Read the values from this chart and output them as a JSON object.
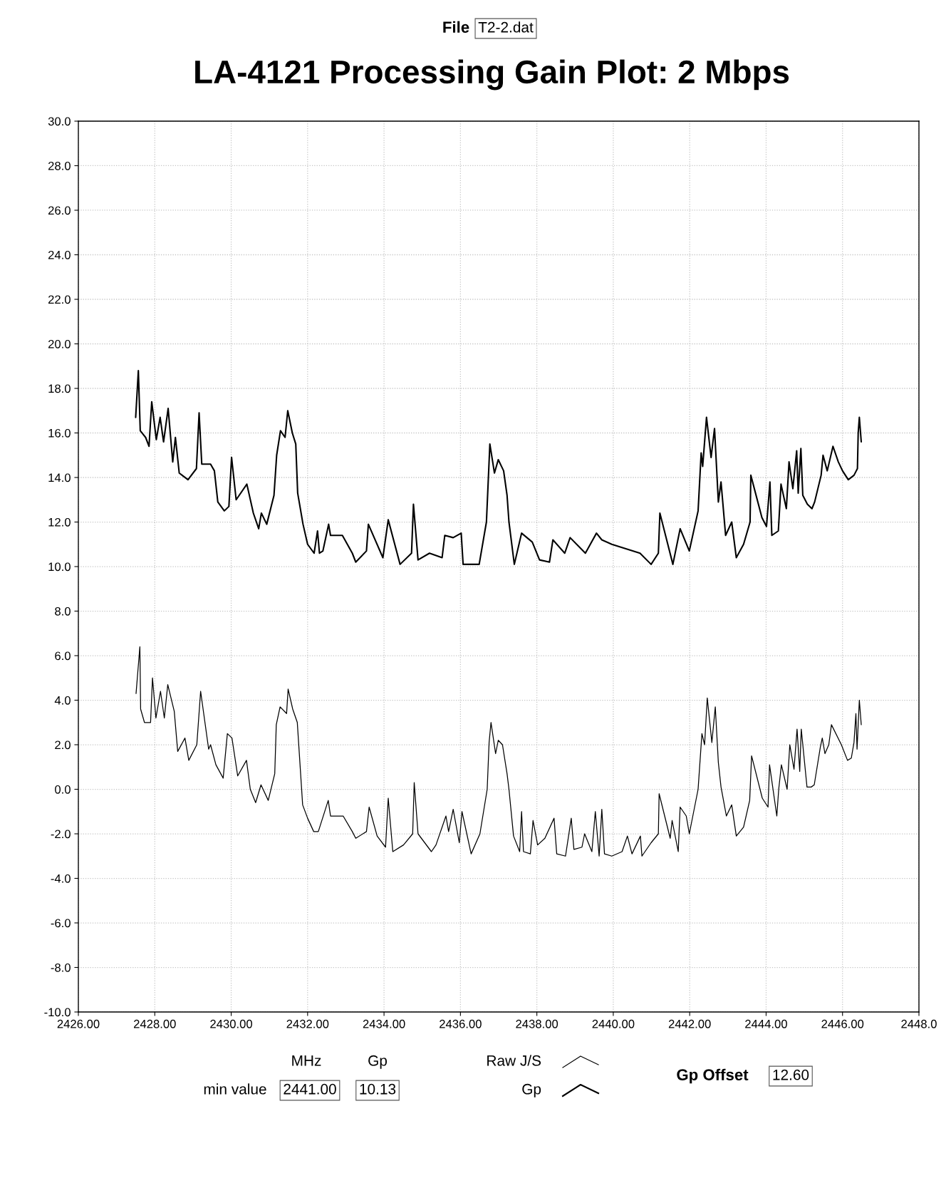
{
  "chart_data": {
    "type": "line",
    "title": "LA-4121 Processing Gain Plot: 2 Mbps",
    "xlim": [
      2426,
      2448
    ],
    "ylim": [
      -10,
      30
    ],
    "xticks": [
      {
        "value": 2426,
        "label": "2426.00"
      },
      {
        "value": 2428,
        "label": "2428.00"
      },
      {
        "value": 2430,
        "label": "2430.00"
      },
      {
        "value": 2432,
        "label": "2432.00"
      },
      {
        "value": 2434,
        "label": "2434.00"
      },
      {
        "value": 2436,
        "label": "2436.00"
      },
      {
        "value": 2438,
        "label": "2438.00"
      },
      {
        "value": 2440,
        "label": "2440.00"
      },
      {
        "value": 2442,
        "label": "2442.00"
      },
      {
        "value": 2444,
        "label": "2444.00"
      },
      {
        "value": 2446,
        "label": "2446.00"
      },
      {
        "value": 2448,
        "label": "2448.0"
      }
    ],
    "yticks": [
      {
        "value": 30,
        "label": "30.0"
      },
      {
        "value": 28,
        "label": "28.0"
      },
      {
        "value": 26,
        "label": "26.0"
      },
      {
        "value": 24,
        "label": "24.0"
      },
      {
        "value": 22,
        "label": "22.0"
      },
      {
        "value": 20,
        "label": "20.0"
      },
      {
        "value": 18,
        "label": "18.0"
      },
      {
        "value": 16,
        "label": "16.0"
      },
      {
        "value": 14,
        "label": "14.0"
      },
      {
        "value": 12,
        "label": "12.0"
      },
      {
        "value": 10,
        "label": "10.0"
      },
      {
        "value": 8,
        "label": "8.0"
      },
      {
        "value": 6,
        "label": "6.0"
      },
      {
        "value": 4,
        "label": "4.0"
      },
      {
        "value": 2,
        "label": "2.0"
      },
      {
        "value": 0,
        "label": "0.0"
      },
      {
        "value": -2,
        "label": "-2.0"
      },
      {
        "value": -4,
        "label": "-4.0"
      },
      {
        "value": -6,
        "label": "-6.0"
      },
      {
        "value": -8,
        "label": "-8.0"
      },
      {
        "value": -10,
        "label": "-10.0"
      }
    ],
    "grid": true,
    "legend": "bottom",
    "annotations": [
      "File",
      "T2-2.dat",
      "min value",
      "MHz",
      "Gp",
      "2441.00",
      "10.13",
      "Gp Offset",
      "12.60"
    ],
    "series": [
      {
        "name": "Gp",
        "color": "#000000",
        "x": [
          2446.49,
          2446.44,
          2446.41,
          2446.39,
          2446.3,
          2446.15,
          2446.0,
          2445.89,
          2445.75,
          2445.6,
          2445.49,
          2445.44,
          2445.27,
          2445.2,
          2445.08,
          2444.96,
          2444.91,
          2444.84,
          2444.8,
          2444.7,
          2444.6,
          2444.53,
          2444.39,
          2444.32,
          2444.15,
          2444.1,
          2444.01,
          2443.89,
          2443.6,
          2443.58,
          2443.41,
          2443.22,
          2443.1,
          2442.94,
          2442.82,
          2442.75,
          2442.65,
          2442.56,
          2442.44,
          2442.34,
          2442.3,
          2442.22,
          2441.99,
          2441.75,
          2441.56,
          2441.22,
          2441.18,
          2440.99,
          2440.7,
          2439.96,
          2439.7,
          2439.56,
          2439.27,
          2438.87,
          2438.73,
          2438.42,
          2438.33,
          2438.07,
          2437.88,
          2437.6,
          2437.41,
          2437.27,
          2437.22,
          2437.13,
          2436.99,
          2436.89,
          2436.77,
          2436.68,
          2436.49,
          2436.07,
          2436.02,
          2435.81,
          2435.59,
          2435.52,
          2435.19,
          2434.89,
          2434.77,
          2434.72,
          2434.42,
          2434.11,
          2433.97,
          2433.59,
          2433.54,
          2433.26,
          2433.17,
          2432.91,
          2432.6,
          2432.55,
          2432.4,
          2432.31,
          2432.26,
          2432.17,
          2432.0,
          2431.88,
          2431.74,
          2431.69,
          2431.6,
          2431.48,
          2431.41,
          2431.29,
          2431.19,
          2431.12,
          2430.93,
          2430.79,
          2430.72,
          2430.58,
          2430.41,
          2430.13,
          2430.01,
          2429.94,
          2429.82,
          2429.65,
          2429.56,
          2429.46,
          2429.23,
          2429.16,
          2429.09,
          2428.87,
          2428.64,
          2428.54,
          2428.47,
          2428.35,
          2428.23,
          2428.14,
          2428.04,
          2427.92,
          2427.85,
          2427.76,
          2427.62,
          2427.57,
          2427.5
        ],
        "values": [
          15.6,
          16.7,
          16.0,
          14.4,
          14.1,
          13.9,
          14.3,
          14.7,
          15.4,
          14.3,
          15.0,
          14.1,
          12.9,
          12.6,
          12.8,
          13.2,
          15.3,
          13.3,
          15.2,
          13.5,
          14.7,
          12.6,
          13.7,
          11.6,
          11.4,
          13.8,
          11.8,
          12.2,
          14.1,
          12.0,
          11.0,
          10.4,
          12.0,
          11.4,
          13.8,
          12.9,
          16.2,
          14.9,
          16.7,
          14.5,
          15.1,
          12.5,
          10.7,
          11.7,
          10.1,
          12.4,
          10.6,
          10.1,
          10.6,
          11.0,
          11.2,
          11.5,
          10.6,
          11.3,
          10.6,
          11.2,
          10.2,
          10.3,
          11.1,
          11.5,
          10.1,
          12.0,
          13.2,
          14.3,
          14.8,
          14.2,
          15.5,
          12.0,
          10.1,
          10.1,
          11.5,
          11.3,
          11.4,
          10.4,
          10.6,
          10.3,
          12.8,
          10.6,
          10.1,
          12.1,
          10.4,
          11.9,
          10.7,
          10.2,
          10.6,
          11.4,
          11.4,
          11.9,
          10.7,
          10.6,
          11.6,
          10.6,
          11.0,
          11.9,
          13.3,
          15.5,
          16.0,
          17.0,
          15.8,
          16.1,
          15.0,
          13.2,
          11.9,
          12.4,
          11.7,
          12.4,
          13.7,
          13.0,
          14.9,
          12.7,
          12.5,
          12.9,
          14.3,
          14.6,
          14.6,
          16.9,
          14.4,
          13.9,
          14.2,
          15.8,
          14.7,
          17.1,
          15.6,
          16.7,
          15.7,
          17.4,
          15.4,
          15.8,
          16.1,
          18.8,
          16.7
        ]
      },
      {
        "name": "Raw J/S",
        "color": "#000000",
        "x": [
          2446.49,
          2446.44,
          2446.38,
          2446.35,
          2446.3,
          2446.23,
          2446.13,
          2445.97,
          2445.71,
          2445.64,
          2445.54,
          2445.47,
          2445.42,
          2445.26,
          2445.18,
          2445.07,
          2444.92,
          2444.88,
          2444.81,
          2444.73,
          2444.62,
          2444.55,
          2444.4,
          2444.33,
          2444.28,
          2444.09,
          2444.05,
          2443.9,
          2443.62,
          2443.57,
          2443.41,
          2443.22,
          2443.1,
          2442.96,
          2442.82,
          2442.75,
          2442.67,
          2442.58,
          2442.46,
          2442.39,
          2442.32,
          2442.22,
          2441.99,
          2441.91,
          2441.75,
          2441.7,
          2441.54,
          2441.49,
          2441.2,
          2441.18,
          2440.99,
          2440.75,
          2440.71,
          2440.49,
          2440.37,
          2440.23,
          2439.96,
          2439.77,
          2439.7,
          2439.63,
          2439.53,
          2439.44,
          2439.25,
          2439.18,
          2438.97,
          2438.9,
          2438.75,
          2438.52,
          2438.45,
          2438.21,
          2438.02,
          2437.9,
          2437.83,
          2437.65,
          2437.6,
          2437.55,
          2437.39,
          2437.27,
          2437.22,
          2437.1,
          2436.99,
          2436.92,
          2436.8,
          2436.75,
          2436.7,
          2436.51,
          2436.28,
          2436.04,
          2435.97,
          2435.81,
          2435.69,
          2435.62,
          2435.36,
          2435.24,
          2434.89,
          2434.79,
          2434.75,
          2434.51,
          2434.23,
          2434.11,
          2434.04,
          2433.82,
          2433.61,
          2433.54,
          2433.26,
          2433.17,
          2432.93,
          2432.6,
          2432.54,
          2432.28,
          2432.16,
          2432.0,
          2431.87,
          2431.73,
          2431.61,
          2431.49,
          2431.45,
          2431.28,
          2431.18,
          2431.14,
          2430.97,
          2430.78,
          2430.64,
          2430.5,
          2430.4,
          2430.17,
          2430.02,
          2429.9,
          2429.79,
          2429.6,
          2429.46,
          2429.41,
          2429.2,
          2429.1,
          2428.89,
          2428.79,
          2428.6,
          2428.51,
          2428.34,
          2428.25,
          2428.15,
          2428.03,
          2427.94,
          2427.89,
          2427.73,
          2427.63,
          2427.61,
          2427.51
        ],
        "values": [
          2.9,
          4.0,
          1.8,
          3.4,
          2.1,
          1.4,
          1.3,
          2.0,
          2.9,
          2.0,
          1.6,
          2.3,
          1.9,
          0.2,
          0.1,
          0.1,
          2.7,
          0.8,
          2.7,
          0.9,
          2.0,
          0.0,
          1.1,
          0.0,
          -1.2,
          1.1,
          -0.8,
          -0.4,
          1.5,
          -0.5,
          -1.7,
          -2.1,
          -0.7,
          -1.2,
          0.1,
          1.2,
          3.7,
          2.1,
          4.1,
          2.0,
          2.5,
          0.0,
          -2.0,
          -1.2,
          -0.8,
          -2.8,
          -1.4,
          -2.2,
          -0.2,
          -2.0,
          -2.4,
          -3.0,
          -2.1,
          -2.9,
          -2.1,
          -2.8,
          -3.0,
          -2.9,
          -0.9,
          -3.0,
          -1.0,
          -2.8,
          -2.0,
          -2.6,
          -2.7,
          -1.3,
          -3.0,
          -2.9,
          -1.3,
          -2.2,
          -2.5,
          -1.4,
          -2.9,
          -2.8,
          -1.0,
          -2.8,
          -2.1,
          0.0,
          0.7,
          2.0,
          2.2,
          1.6,
          3.0,
          2.1,
          0.0,
          -2.0,
          -2.9,
          -1.0,
          -2.4,
          -0.9,
          -1.9,
          -1.2,
          -2.5,
          -2.8,
          -2.0,
          0.3,
          -2.0,
          -2.5,
          -2.8,
          -0.4,
          -2.6,
          -2.1,
          -0.8,
          -1.9,
          -2.2,
          -1.9,
          -1.2,
          -1.2,
          -0.5,
          -1.9,
          -1.9,
          -1.3,
          -0.7,
          3.0,
          3.6,
          4.5,
          3.4,
          3.7,
          2.9,
          0.7,
          -0.5,
          0.2,
          -0.6,
          0.0,
          1.3,
          0.6,
          2.3,
          2.5,
          0.5,
          1.1,
          2.0,
          1.8,
          4.4,
          2.0,
          1.3,
          2.3,
          1.7,
          3.5,
          4.7,
          3.2,
          4.4,
          3.2,
          5.0,
          3.0,
          3.0,
          3.6,
          6.4,
          4.3
        ]
      }
    ]
  }
}
